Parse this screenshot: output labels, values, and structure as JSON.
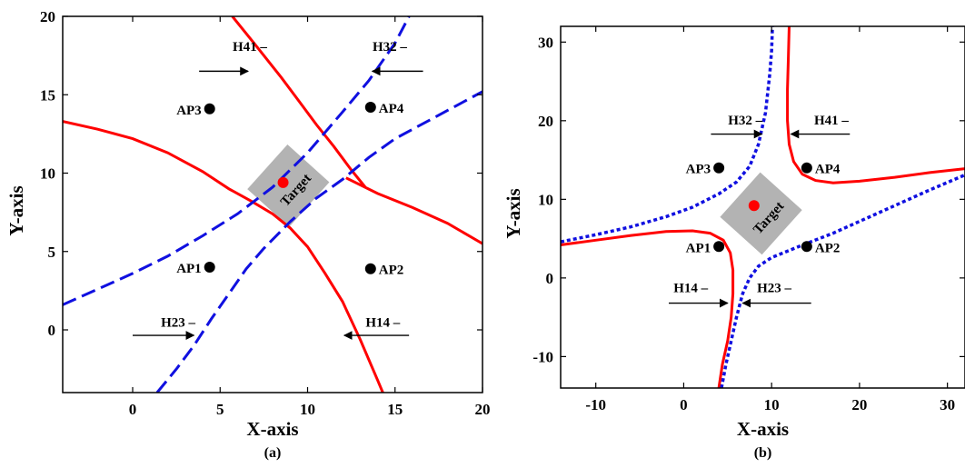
{
  "colors": {
    "red": "#ff0000",
    "blue": "#1010e0",
    "target_box": "#b3b3b3",
    "marker": "#000000",
    "target_dot": "#ff0000"
  },
  "chart_data": [
    {
      "type": "line",
      "panel_label": "(a)",
      "xlabel": "X-axis",
      "ylabel": "Y-axis",
      "xlim": [
        -4,
        20
      ],
      "ylim": [
        -4,
        20
      ],
      "xticks": [
        0,
        5,
        10,
        15,
        20
      ],
      "yticks": [
        0,
        5,
        10,
        15,
        20
      ],
      "xtick_labels": [
        "0",
        "5",
        "10",
        "15",
        "20"
      ],
      "ytick_labels": [
        "0",
        "5",
        "10",
        "15",
        "20"
      ],
      "grid": false,
      "series": [
        {
          "color": "red",
          "style": "solid",
          "points": [
            [
              5.7,
              20
            ],
            [
              7,
              18.2
            ],
            [
              8.5,
              16.1
            ],
            [
              9.5,
              14.6
            ],
            [
              10.5,
              13.1
            ],
            [
              11.5,
              11.7
            ],
            [
              12.5,
              10.2
            ],
            [
              13.3,
              9.1
            ]
          ]
        },
        {
          "color": "red",
          "style": "solid",
          "points": [
            [
              -4,
              13.3
            ],
            [
              -2,
              12.8
            ],
            [
              0,
              12.2
            ],
            [
              2,
              11.3
            ],
            [
              4,
              10.1
            ],
            [
              5.5,
              9.0
            ],
            [
              6.8,
              8.2
            ],
            [
              8,
              7.4
            ],
            [
              9,
              6.5
            ],
            [
              10,
              5.3
            ],
            [
              11,
              3.6
            ],
            [
              12,
              1.8
            ],
            [
              13,
              -0.6
            ],
            [
              14,
              -3.2
            ],
            [
              14.3,
              -4
            ]
          ]
        },
        {
          "color": "red",
          "style": "solid",
          "points": [
            [
              12.2,
              9.7
            ],
            [
              14,
              8.7
            ],
            [
              16,
              7.8
            ],
            [
              18,
              6.8
            ],
            [
              20,
              5.5
            ]
          ]
        },
        {
          "color": "blue",
          "style": "dashed",
          "points": [
            [
              -4,
              1.6
            ],
            [
              -2,
              2.6
            ],
            [
              0,
              3.6
            ],
            [
              2,
              4.7
            ],
            [
              4,
              6.0
            ],
            [
              6,
              7.4
            ],
            [
              8,
              9.1
            ],
            [
              10,
              11.3
            ],
            [
              12,
              13.9
            ],
            [
              13.5,
              15.9
            ],
            [
              15,
              18.3
            ],
            [
              15.8,
              20
            ]
          ]
        },
        {
          "color": "blue",
          "style": "dashed",
          "points": [
            [
              1.4,
              -4
            ],
            [
              2.5,
              -2.5
            ],
            [
              3.5,
              -1.0
            ],
            [
              4.5,
              0.7
            ],
            [
              5.5,
              2.3
            ],
            [
              6.5,
              3.9
            ],
            [
              7.5,
              5.2
            ],
            [
              9,
              6.9
            ],
            [
              10.5,
              8.4
            ],
            [
              12,
              9.6
            ],
            [
              13.5,
              11.0
            ],
            [
              15,
              12.2
            ],
            [
              17,
              13.4
            ],
            [
              20,
              15.2
            ]
          ]
        }
      ],
      "access_points": [
        {
          "label": "AP3",
          "x": 4.4,
          "y": 14.1,
          "label_side": "left"
        },
        {
          "label": "AP4",
          "x": 13.6,
          "y": 14.2,
          "label_side": "right"
        },
        {
          "label": "AP1",
          "x": 4.4,
          "y": 4.0,
          "label_side": "left"
        },
        {
          "label": "AP2",
          "x": 13.6,
          "y": 3.9,
          "label_side": "right"
        }
      ],
      "target": {
        "label": "Target",
        "x": 8.6,
        "y": 9.4,
        "box_center": [
          8.9,
          9.2
        ],
        "box_rotation_deg": -48
      },
      "annotations": [
        {
          "text": "H41 –",
          "text_at": [
            6.7,
            17.8
          ],
          "arrow_from": [
            3.8,
            16.5
          ],
          "arrow_to": [
            6.6,
            16.5
          ]
        },
        {
          "text": "H32 –",
          "text_at": [
            14.7,
            17.8
          ],
          "arrow_from": [
            16.6,
            16.5
          ],
          "arrow_to": [
            13.7,
            16.5
          ]
        },
        {
          "text": "H23 –",
          "text_at": [
            2.6,
            0.2
          ],
          "arrow_from": [
            0.0,
            -0.35
          ],
          "arrow_to": [
            3.5,
            -0.35
          ]
        },
        {
          "text": "H14 –",
          "text_at": [
            14.3,
            0.2
          ],
          "arrow_from": [
            15.8,
            -0.35
          ],
          "arrow_to": [
            12.1,
            -0.35
          ]
        }
      ]
    },
    {
      "type": "line",
      "panel_label": "(b)",
      "xlabel": "X-axis",
      "ylabel": "Y-axis",
      "xlim": [
        -14,
        32
      ],
      "ylim": [
        -14,
        32
      ],
      "xticks": [
        -10,
        0,
        10,
        20,
        30
      ],
      "yticks": [
        -10,
        0,
        10,
        20,
        30
      ],
      "xtick_labels": [
        "-10",
        "0",
        "10",
        "20",
        "30"
      ],
      "ytick_labels": [
        "-10",
        "0",
        "10",
        "20",
        "30"
      ],
      "grid": false,
      "series": [
        {
          "color": "red",
          "style": "solid",
          "points": [
            [
              12,
              32
            ],
            [
              11.9,
              28
            ],
            [
              11.8,
              24
            ],
            [
              11.8,
              20
            ],
            [
              12.0,
              17
            ],
            [
              12.5,
              14.8
            ],
            [
              13.5,
              13.2
            ],
            [
              15,
              12.4
            ],
            [
              17,
              12.1
            ],
            [
              20,
              12.3
            ],
            [
              24,
              12.8
            ],
            [
              28,
              13.4
            ],
            [
              32,
              13.9
            ]
          ]
        },
        {
          "color": "red",
          "style": "solid",
          "points": [
            [
              -14,
              4.2
            ],
            [
              -10,
              4.8
            ],
            [
              -6,
              5.4
            ],
            [
              -2,
              5.9
            ],
            [
              1,
              6.0
            ],
            [
              3,
              5.7
            ],
            [
              4.5,
              4.8
            ],
            [
              5.3,
              3.2
            ],
            [
              5.6,
              1
            ],
            [
              5.6,
              -2
            ],
            [
              5.4,
              -5
            ],
            [
              5,
              -8
            ],
            [
              4.4,
              -11
            ],
            [
              4.0,
              -14
            ]
          ]
        },
        {
          "color": "blue",
          "style": "dotted",
          "points": [
            [
              -14,
              4.6
            ],
            [
              -10,
              5.5
            ],
            [
              -6,
              6.5
            ],
            [
              -2,
              7.8
            ],
            [
              1,
              9.0
            ],
            [
              4,
              10.7
            ],
            [
              6,
              12.2
            ],
            [
              7.5,
              14.2
            ],
            [
              8.5,
              17
            ],
            [
              9.3,
              21
            ],
            [
              9.8,
              26
            ],
            [
              10,
              29
            ],
            [
              10.1,
              32
            ]
          ]
        },
        {
          "color": "blue",
          "style": "dotted",
          "points": [
            [
              4.3,
              -14
            ],
            [
              4.8,
              -11
            ],
            [
              5.4,
              -8
            ],
            [
              6,
              -5
            ],
            [
              6.7,
              -2
            ],
            [
              7.5,
              0
            ],
            [
              8.5,
              1.5
            ],
            [
              10,
              2.6
            ],
            [
              12,
              3.5
            ],
            [
              14,
              4.4
            ],
            [
              17,
              5.7
            ],
            [
              20,
              7.2
            ],
            [
              24,
              9.2
            ],
            [
              28,
              11.2
            ],
            [
              32,
              13.1
            ]
          ]
        }
      ],
      "access_points": [
        {
          "label": "AP3",
          "x": 4,
          "y": 14,
          "label_side": "left"
        },
        {
          "label": "AP4",
          "x": 14,
          "y": 14,
          "label_side": "right"
        },
        {
          "label": "AP1",
          "x": 4,
          "y": 4,
          "label_side": "left"
        },
        {
          "label": "AP2",
          "x": 14,
          "y": 4,
          "label_side": "right"
        }
      ],
      "target": {
        "label": "Target",
        "x": 8,
        "y": 9.2,
        "box_center": [
          8.8,
          8.2
        ],
        "box_rotation_deg": -48
      },
      "annotations": [
        {
          "text": "H32 –",
          "text_at": [
            7,
            19.5
          ],
          "arrow_from": [
            3.1,
            18.3
          ],
          "arrow_to": [
            8.9,
            18.3
          ]
        },
        {
          "text": "H41 –",
          "text_at": [
            16.8,
            19.5
          ],
          "arrow_from": [
            18.9,
            18.3
          ],
          "arrow_to": [
            12.2,
            18.3
          ]
        },
        {
          "text": "H14 –",
          "text_at": [
            0.8,
            -1.8
          ],
          "arrow_from": [
            -1.7,
            -3.2
          ],
          "arrow_to": [
            5.0,
            -3.2
          ]
        },
        {
          "text": "H23 –",
          "text_at": [
            10.3,
            -1.8
          ],
          "arrow_from": [
            14.5,
            -3.2
          ],
          "arrow_to": [
            6.7,
            -3.2
          ]
        }
      ]
    }
  ]
}
